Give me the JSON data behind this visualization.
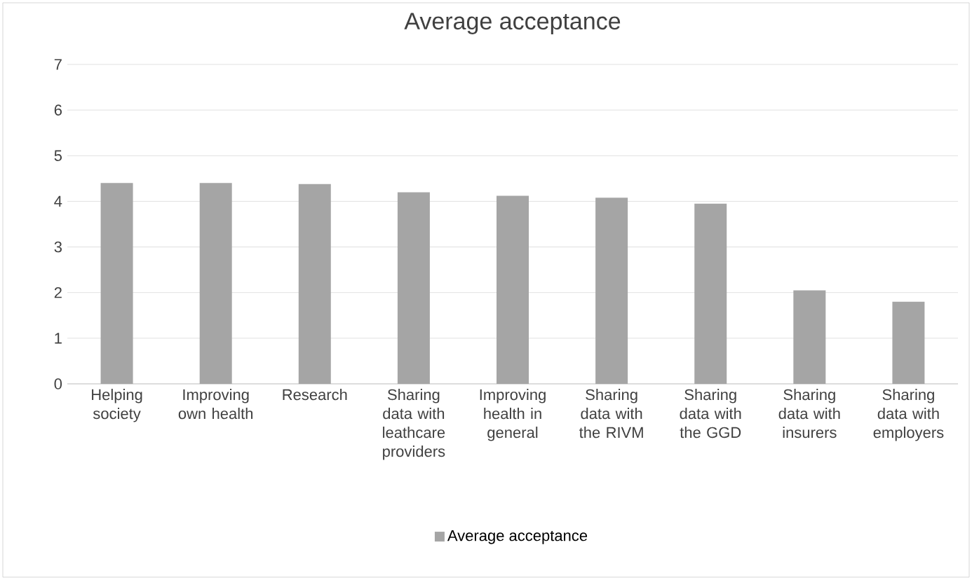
{
  "chart_data": {
    "type": "bar",
    "title": "Average acceptance",
    "categories": [
      "Helping society",
      "Improving own health",
      "Research",
      "Sharing data with leathcare providers",
      "Improving health in general",
      "Sharing data with the RIVM",
      "Sharing data with the GGD",
      "Sharing data with insurers",
      "Sharing data with employers"
    ],
    "series": [
      {
        "name": "Average acceptance",
        "color": "#a5a5a5",
        "values": [
          4.4,
          4.4,
          4.38,
          4.2,
          4.12,
          4.08,
          3.95,
          2.05,
          1.8
        ]
      }
    ],
    "ylim": [
      0,
      7
    ],
    "yticks": [
      0,
      1,
      2,
      3,
      4,
      5,
      6,
      7
    ],
    "grid": "y",
    "legend": "bottom"
  }
}
